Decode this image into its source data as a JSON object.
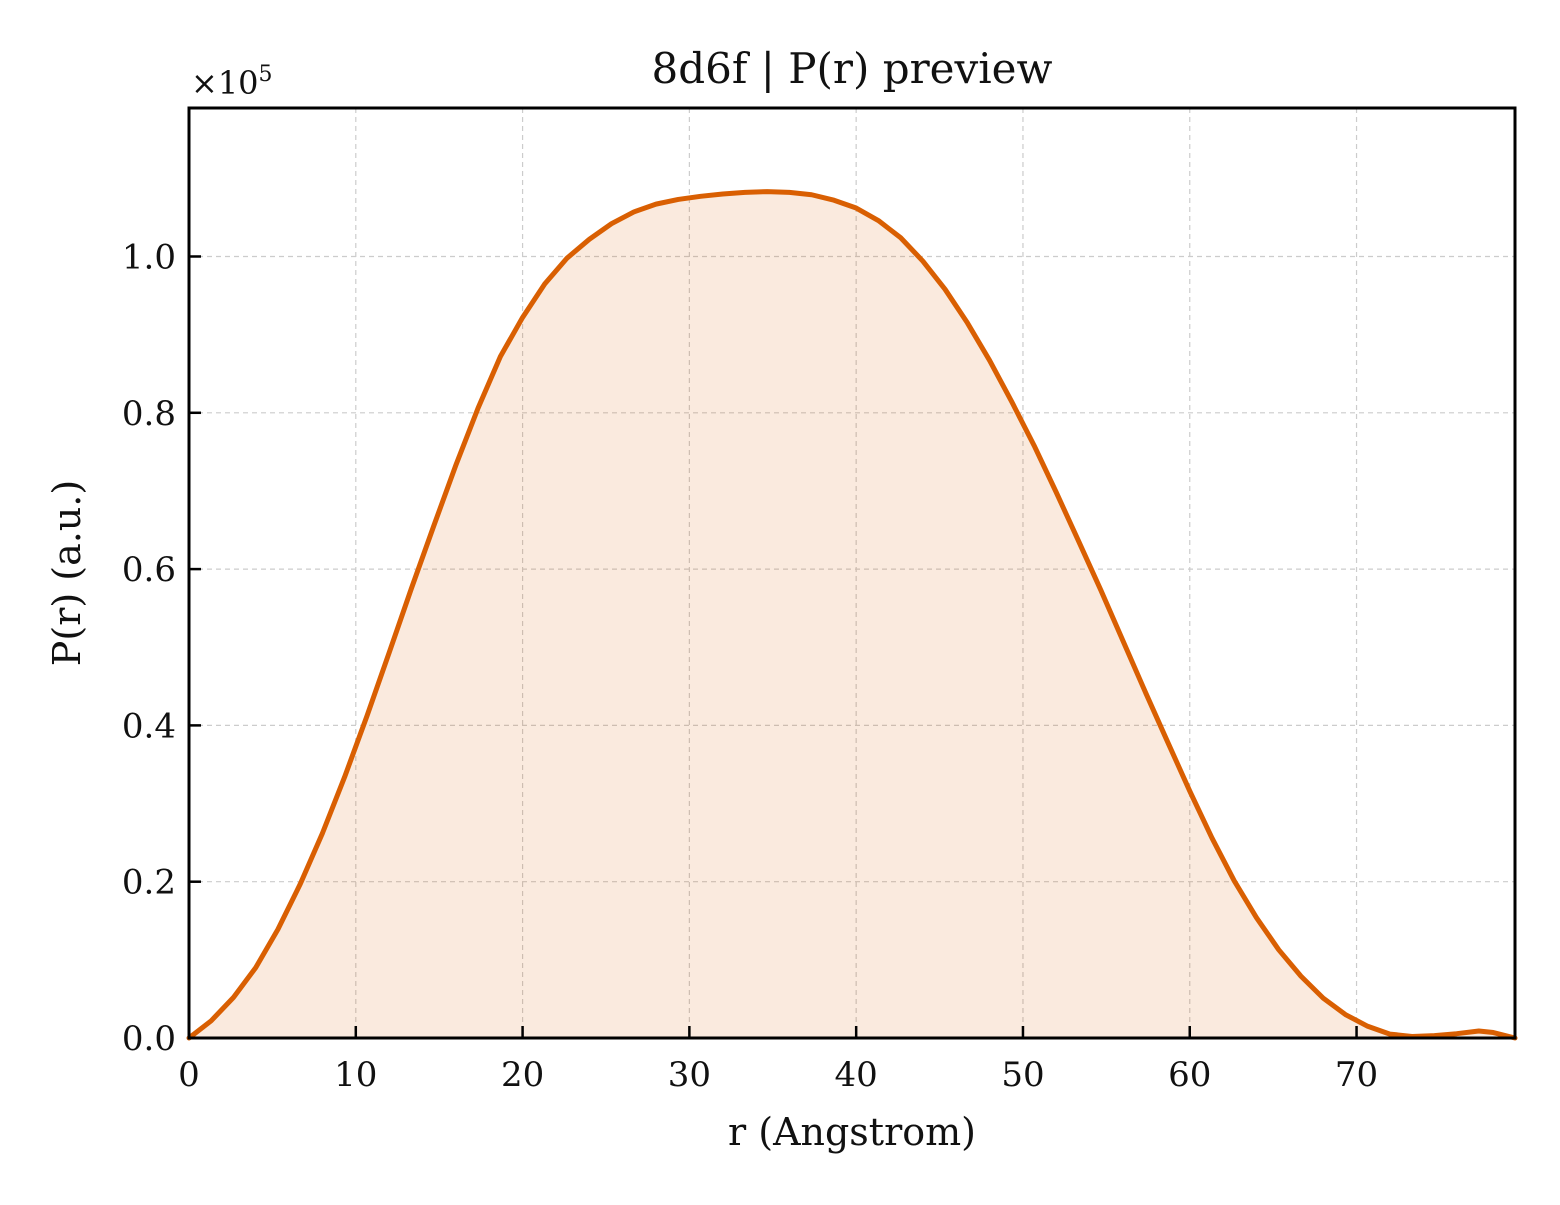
{
  "chart_data": {
    "type": "area",
    "title": "8d6f | P(r) preview",
    "xlabel": "r (Angstrom)",
    "ylabel": "P(r) (a.u.)",
    "y_offset_label": {
      "base": "×10",
      "exponent": "5"
    },
    "xlim": [
      0,
      79.5
    ],
    "ylim": [
      0,
      119000
    ],
    "grid": true,
    "x_ticks": [
      0,
      10,
      20,
      30,
      40,
      50,
      60,
      70
    ],
    "x_tick_labels": [
      "0",
      "10",
      "20",
      "30",
      "40",
      "50",
      "60",
      "70"
    ],
    "y_ticks": [
      0,
      20000,
      40000,
      60000,
      80000,
      100000
    ],
    "y_tick_labels": [
      "0.0",
      "0.2",
      "0.4",
      "0.6",
      "0.8",
      "1.0"
    ],
    "series": [
      {
        "color": "#d95f02",
        "fill_color": "#d95f02",
        "x": [
          0,
          1.33,
          2.67,
          4.0,
          5.33,
          6.67,
          8.0,
          9.33,
          10.67,
          12.0,
          13.33,
          14.67,
          16.0,
          17.33,
          18.67,
          20.0,
          21.33,
          22.67,
          24.0,
          25.33,
          26.67,
          28.0,
          29.33,
          30.67,
          32.0,
          33.33,
          34.67,
          36.0,
          37.33,
          38.67,
          40.0,
          41.33,
          42.67,
          44.0,
          45.33,
          46.67,
          48.0,
          49.33,
          50.67,
          52.0,
          53.33,
          54.67,
          56.0,
          57.33,
          58.67,
          60.0,
          61.33,
          62.67,
          64.0,
          65.33,
          66.67,
          68.0,
          69.33,
          70.67,
          72.0,
          73.33,
          74.67,
          76.0,
          77.33,
          78.2,
          79.5
        ],
        "y": [
          0,
          2200,
          5200,
          9000,
          13900,
          19700,
          26200,
          33400,
          41200,
          49300,
          57500,
          65500,
          73300,
          80600,
          87200,
          92200,
          96500,
          99800,
          102200,
          104200,
          105700,
          106700,
          107300,
          107700,
          108000,
          108200,
          108300,
          108200,
          107900,
          107200,
          106200,
          104600,
          102400,
          99400,
          95800,
          91500,
          86700,
          81400,
          75800,
          69800,
          63600,
          57300,
          50800,
          44300,
          37900,
          31600,
          25600,
          20100,
          15400,
          11300,
          7900,
          5100,
          3000,
          1500,
          500,
          200,
          300,
          550,
          900,
          700,
          0
        ]
      }
    ]
  }
}
